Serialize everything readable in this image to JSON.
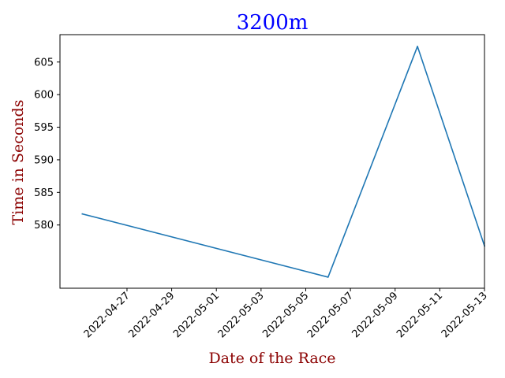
{
  "chart_data": {
    "type": "line",
    "title": "3200m",
    "xlabel": "Date of the Race",
    "ylabel": "Time in Seconds",
    "x": [
      "2022-04-25",
      "2022-05-06",
      "2022-05-10",
      "2022-05-13"
    ],
    "series": [
      {
        "values": [
          581.7,
          572.0,
          607.4,
          576.8
        ]
      }
    ],
    "x_ticks": [
      "2022-04-27",
      "2022-04-29",
      "2022-05-01",
      "2022-05-03",
      "2022-05-05",
      "2022-05-07",
      "2022-05-09",
      "2022-05-11",
      "2022-05-13"
    ],
    "xlim": [
      "2022-04-24",
      "2022-05-13"
    ],
    "y_ticks": [
      580,
      585,
      590,
      595,
      600,
      605
    ],
    "ylim": [
      570.3,
      609.2
    ],
    "grid": false,
    "legend": "none",
    "colors": {
      "line": "#1f77b4",
      "title": "#0000ff",
      "axis_labels": "#8b0000"
    }
  }
}
